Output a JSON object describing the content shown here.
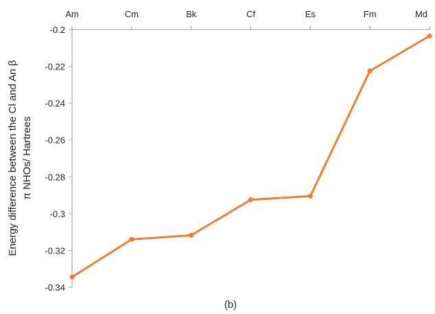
{
  "chart_data": {
    "type": "line",
    "categories": [
      "Am",
      "Cm",
      "Bk",
      "Cf",
      "Es",
      "Fm",
      "Md"
    ],
    "series": [
      {
        "values": [
          -0.3345,
          -0.314,
          -0.3118,
          -0.2925,
          -0.2905,
          -0.2225,
          -0.2035
        ]
      }
    ],
    "ylim": [
      -0.34,
      -0.2
    ],
    "yticks": [
      "-0.2",
      "-0.22",
      "-0.24",
      "-0.26",
      "-0.28",
      "-0.3",
      "-0.32",
      "-0.34"
    ],
    "ylabel_line1": "Energy difference between the  Cl and An β",
    "ylabel_line2": "π NHOs/ Hartrees",
    "caption": "(b)",
    "x_axis_position": "top",
    "grid": false,
    "colors": {
      "series": "#ED7D31",
      "axis": "#9a9a9a"
    }
  }
}
